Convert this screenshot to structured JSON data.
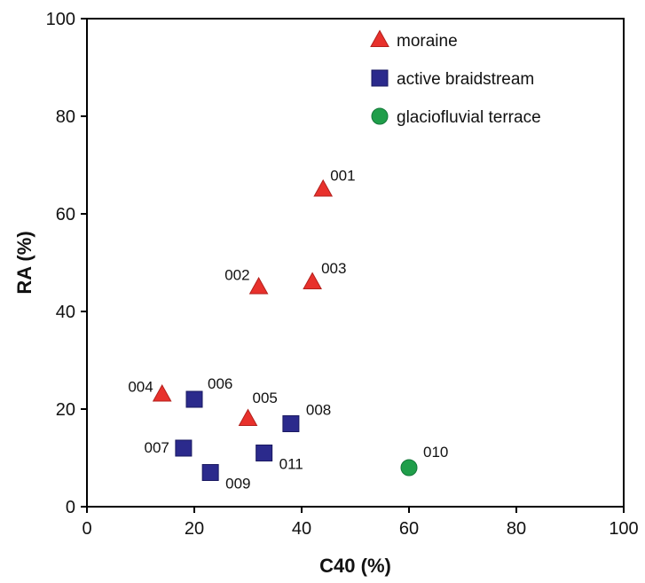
{
  "chart_data": {
    "type": "scatter",
    "xlabel": "C40 (%)",
    "ylabel": "RA (%)",
    "xlim": [
      0,
      100
    ],
    "ylim": [
      0,
      100
    ],
    "xticks": [
      "0",
      "20",
      "40",
      "60",
      "80",
      "100"
    ],
    "yticks": [
      "0",
      "20",
      "40",
      "60",
      "80",
      "100"
    ],
    "grid": false,
    "legend_position": "top-right",
    "series": [
      {
        "name": "moraine",
        "marker": "triangle",
        "color": "#e8312c",
        "points": [
          {
            "label": "001",
            "x": 44,
            "y": 65
          },
          {
            "label": "002",
            "x": 32,
            "y": 45
          },
          {
            "label": "003",
            "x": 42,
            "y": 46
          },
          {
            "label": "004",
            "x": 14,
            "y": 23
          },
          {
            "label": "005",
            "x": 30,
            "y": 18
          }
        ]
      },
      {
        "name": "active braidstream",
        "marker": "square",
        "color": "#2b2a8c",
        "points": [
          {
            "label": "006",
            "x": 20,
            "y": 22
          },
          {
            "label": "007",
            "x": 18,
            "y": 12
          },
          {
            "label": "008",
            "x": 38,
            "y": 17
          },
          {
            "label": "009",
            "x": 23,
            "y": 7
          },
          {
            "label": "011",
            "x": 33,
            "y": 11
          }
        ]
      },
      {
        "name": "glaciofluvial terrace",
        "marker": "circle",
        "color": "#1f9e4a",
        "points": [
          {
            "label": "010",
            "x": 60,
            "y": 8
          }
        ]
      }
    ]
  }
}
